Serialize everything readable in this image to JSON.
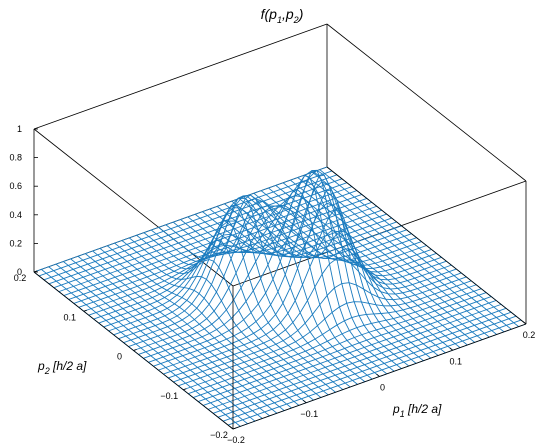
{
  "chart_data": {
    "type": "surface",
    "title": "f(p1,p2)",
    "title_parts": {
      "base": "f(p",
      "sub1": "1",
      "mid": ",p",
      "sub2": "2",
      "end": ")"
    },
    "xlabel": "p1 [h/2  a]",
    "xlabel_parts": {
      "base": "p",
      "sub": "1",
      "rest": " [h/2  a]"
    },
    "ylabel": "p2 [h/2  a]",
    "ylabel_parts": {
      "base": "p",
      "sub": "2",
      "rest": " [h/2  a]"
    },
    "xlim": [
      -0.2,
      0.2
    ],
    "ylim": [
      -0.2,
      0.2
    ],
    "zlim": [
      0,
      1
    ],
    "x_ticks": [
      "−0.2",
      "−0.1",
      "0",
      "0.1",
      "0.2"
    ],
    "x_tick_values": [
      -0.2,
      -0.1,
      0,
      0.1,
      0.2
    ],
    "y_ticks": [
      "0.2",
      "0.1",
      "0",
      "−0.1",
      "−0.2"
    ],
    "y_tick_values": [
      0.2,
      0.1,
      0,
      -0.1,
      -0.2
    ],
    "z_ticks": [
      "0",
      "0.2",
      "0.4",
      "0.6",
      "0.8",
      "1"
    ],
    "z_tick_values": [
      0,
      0.2,
      0.4,
      0.6,
      0.8,
      1
    ],
    "peaks": [
      {
        "p1": -0.03,
        "p2": 0.03,
        "height": 0.66
      },
      {
        "p1": 0.03,
        "p2": -0.03,
        "height": 0.9
      }
    ],
    "grid_resolution": 41,
    "grid": false,
    "mesh_color": "#1a7bbf"
  }
}
